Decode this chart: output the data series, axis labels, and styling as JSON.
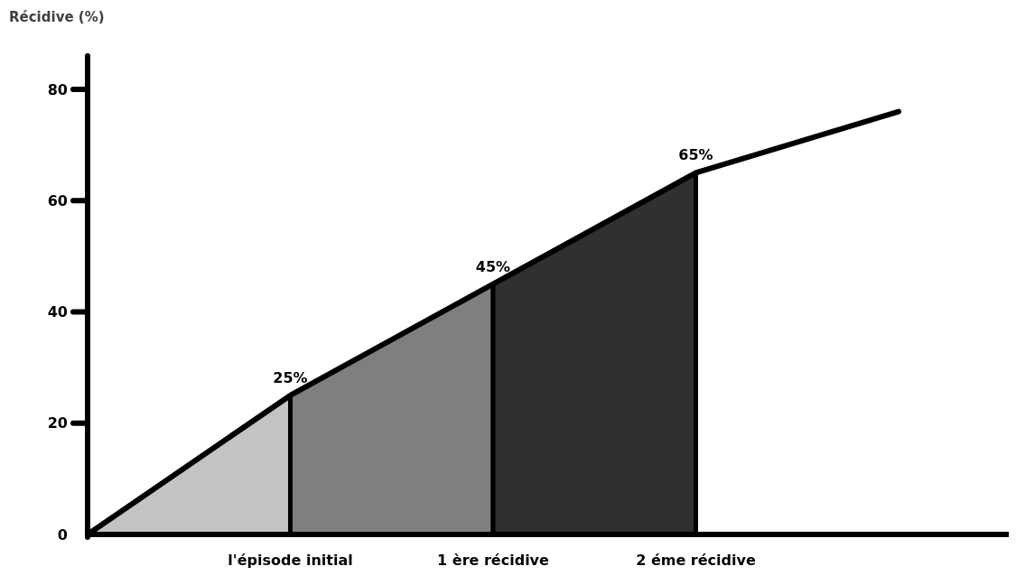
{
  "chart_data": {
    "type": "area",
    "ylabel": "Récidive (%)",
    "categories": [
      null,
      "l'épisode initial",
      "1 ère récidive",
      "2 éme récidive",
      null
    ],
    "series": [
      {
        "color": "#c3c3c3",
        "values": [
          0,
          25,
          null,
          null,
          null
        ]
      },
      {
        "color": "#7f7f7f",
        "values": [
          null,
          25,
          45,
          null,
          null
        ]
      },
      {
        "color": "#303030",
        "values": [
          null,
          null,
          45,
          65,
          null
        ]
      },
      {
        "type": "line",
        "color": "#000000",
        "values": [
          0,
          25,
          45,
          65,
          76
        ],
        "value_labels": [
          null,
          "25%",
          "45%",
          "65%",
          null
        ]
      }
    ],
    "ylim": [
      0,
      86
    ],
    "yticks": [
      0,
      20,
      40,
      60,
      80
    ]
  }
}
